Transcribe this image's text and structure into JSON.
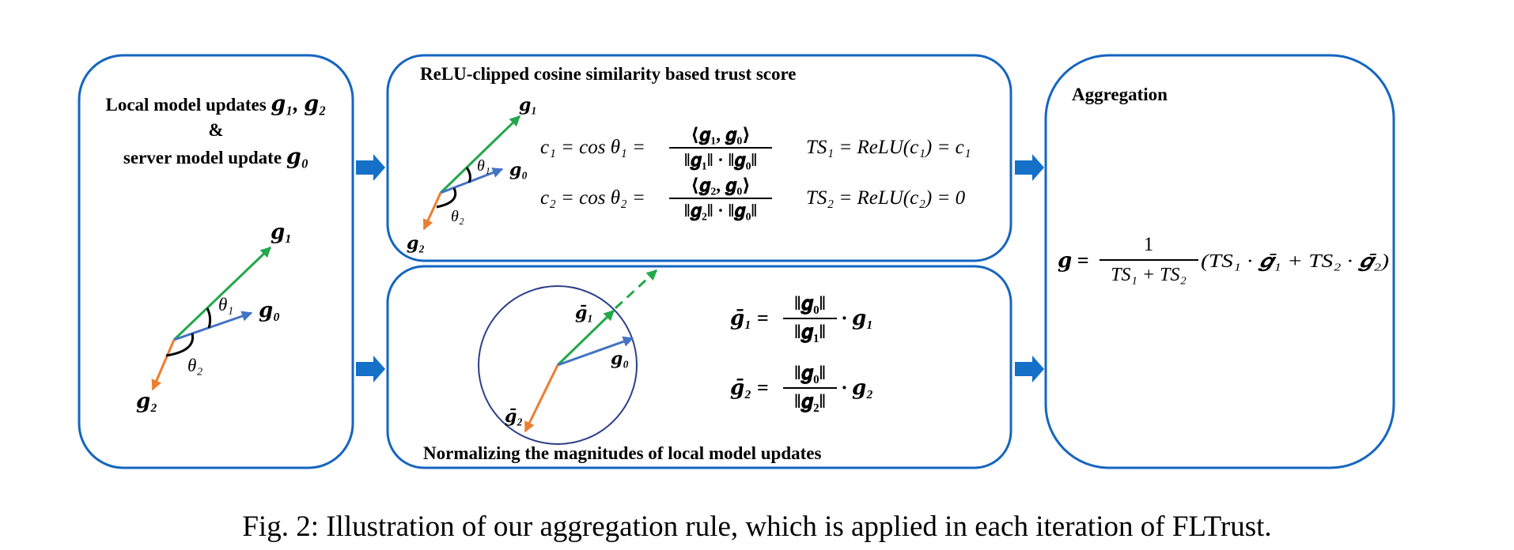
{
  "left_panel": {
    "title_line1_text": "Local model updates",
    "title_line1_math": "𝒈₁, 𝒈₂",
    "title_line2": "&",
    "title_line3_text": "server model update",
    "title_line3_math": "𝒈₀"
  },
  "vector_labels": {
    "g0": "𝒈₀",
    "g1": "𝒈₁",
    "g2": "𝒈₂",
    "theta1": "θ₁",
    "theta2": "θ₂",
    "g1_bar": "𝒈̄₁",
    "g2_bar": "𝒈̄₂"
  },
  "trust_panel": {
    "title": "ReLU-clipped cosine similarity based trust score",
    "c1_lhs": "c₁ = cos θ₁ =",
    "c1_num": "⟨𝒈₁, 𝒈₀⟩",
    "c1_den": "‖𝒈₁‖ · ‖𝒈₀‖",
    "c2_lhs": "c₂ = cos θ₂ =",
    "c2_num": "⟨𝒈₂, 𝒈₀⟩",
    "c2_den": "‖𝒈₂‖ · ‖𝒈₀‖",
    "ts1": "TS₁ = ReLU(c₁) = c₁",
    "ts2": "TS₂ = ReLU(c₂) = 0"
  },
  "normalize_panel": {
    "title": "Normalizing the magnitudes of local model updates",
    "eq1_lhs": "𝒈̄₁ =",
    "eq1_num": "‖𝒈₀‖",
    "eq1_den": "‖𝒈₁‖",
    "eq1_rhs": "· 𝒈₁",
    "eq2_lhs": "𝒈̄₂ =",
    "eq2_num": "‖𝒈₀‖",
    "eq2_den": "‖𝒈₂‖",
    "eq2_rhs": "· 𝒈₂"
  },
  "aggregation_panel": {
    "title": "Aggregation",
    "eq_lhs": "𝒈 =",
    "eq_num": "1",
    "eq_den": "TS₁ + TS₂",
    "eq_rhs": "(TS₁ · 𝒈̄₁ + TS₂ · 𝒈̄₂)"
  },
  "caption": "Fig. 2: Illustration of our aggregation rule, which is applied in each iteration of FLTrust.",
  "colors": {
    "panel_border": "#1565c0",
    "arrow": "#1570c8",
    "g0": "#4472c4",
    "g1": "#22a84a",
    "g2": "#ed7d31"
  }
}
